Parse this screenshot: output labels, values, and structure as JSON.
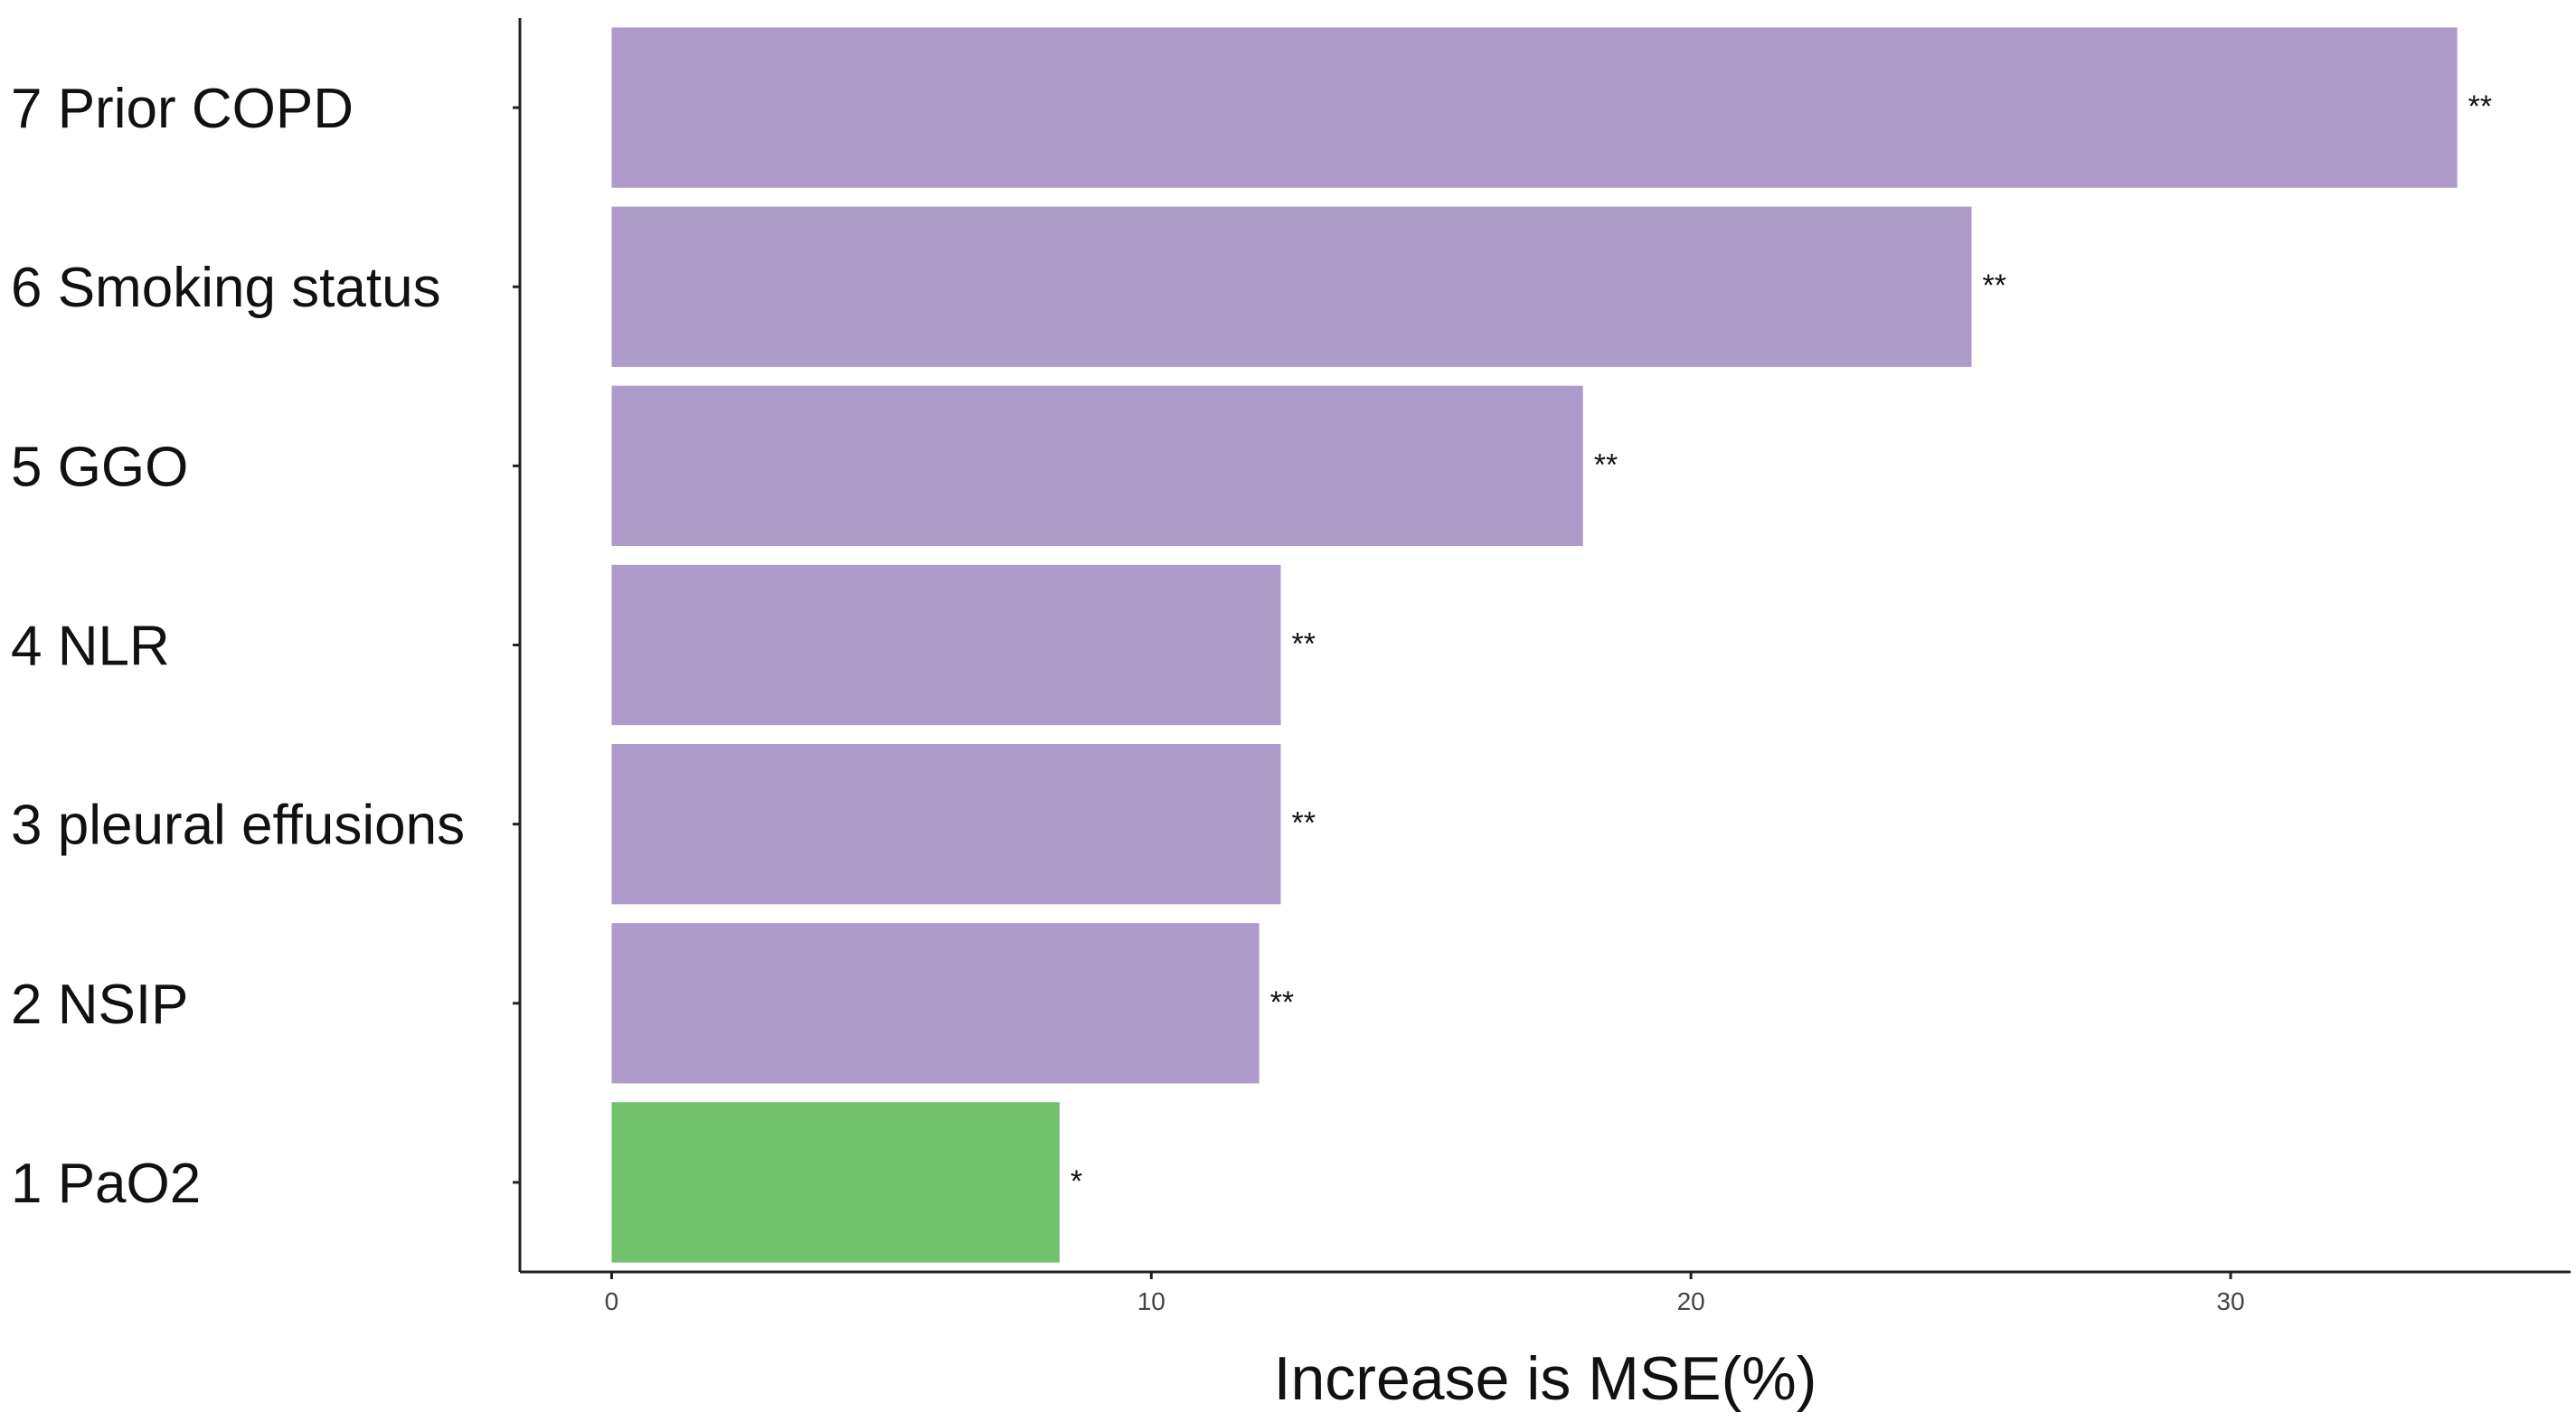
{
  "chart_data": {
    "type": "bar",
    "orientation": "horizontal",
    "xlabel": "Increase is MSE(%)",
    "ylabel": "",
    "title": "",
    "xlim": [
      -1.7,
      36.3
    ],
    "xticks": [
      0,
      10,
      20,
      30
    ],
    "xtick_labels": [
      "0",
      "10",
      "20",
      "30"
    ],
    "grid": false,
    "bars": [
      {
        "label": "7 Prior COPD",
        "value": 34.2,
        "annotation": "**",
        "color": "#af9bca"
      },
      {
        "label": "6 Smoking status",
        "value": 25.2,
        "annotation": "**",
        "color": "#af9bca"
      },
      {
        "label": "5 GGO",
        "value": 18.0,
        "annotation": "**",
        "color": "#af9bca"
      },
      {
        "label": "4 NLR",
        "value": 12.4,
        "annotation": "**",
        "color": "#af9bca"
      },
      {
        "label": "3 pleural effusions",
        "value": 12.4,
        "annotation": "**",
        "color": "#af9bca"
      },
      {
        "label": "2 NSIP",
        "value": 12.0,
        "annotation": "**",
        "color": "#af9bca"
      },
      {
        "label": "1 PaO2",
        "value": 8.3,
        "annotation": "*",
        "color": "#70c06c"
      }
    ]
  }
}
